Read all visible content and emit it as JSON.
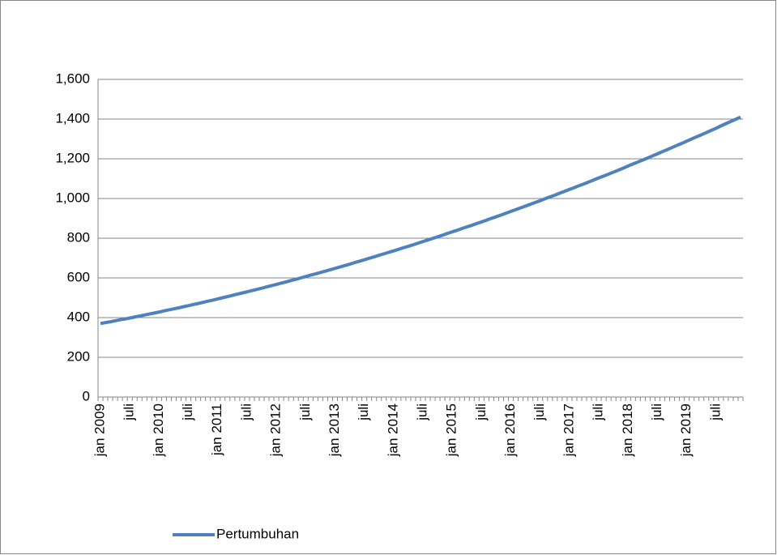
{
  "chart_data": {
    "type": "line",
    "categories": [
      "jan 2009",
      null,
      null,
      null,
      null,
      null,
      "juli",
      null,
      null,
      null,
      null,
      null,
      "jan 2010",
      null,
      null,
      null,
      null,
      null,
      "juli",
      null,
      null,
      null,
      null,
      null,
      "jan 2011",
      null,
      null,
      null,
      null,
      null,
      "juli",
      null,
      null,
      null,
      null,
      null,
      "jan 2012",
      null,
      null,
      null,
      null,
      null,
      "juli",
      null,
      null,
      null,
      null,
      null,
      "jan 2013",
      null,
      null,
      null,
      null,
      null,
      "juli",
      null,
      null,
      null,
      null,
      null,
      "jan 2014",
      null,
      null,
      null,
      null,
      null,
      "juli",
      null,
      null,
      null,
      null,
      null,
      "jan 2015",
      null,
      null,
      null,
      null,
      null,
      "juli",
      null,
      null,
      null,
      null,
      null,
      "jan 2016",
      null,
      null,
      null,
      null,
      null,
      "juli",
      null,
      null,
      null,
      null,
      null,
      "jan 2017",
      null,
      null,
      null,
      null,
      null,
      "juli",
      null,
      null,
      null,
      null,
      null,
      "jan 2018",
      null,
      null,
      null,
      null,
      null,
      "juli",
      null,
      null,
      null,
      null,
      null,
      "jan 2019",
      null,
      null,
      null,
      null,
      null,
      "juli",
      null,
      null,
      null,
      null,
      null
    ],
    "series": [
      {
        "name": "Pertumbuhan",
        "color": "#4f81bd",
        "values": [
          370,
          375,
          379,
          384,
          389,
          393,
          398,
          403,
          408,
          413,
          418,
          423,
          428,
          434,
          439,
          444,
          449,
          455,
          460,
          466,
          471,
          477,
          483,
          488,
          494,
          500,
          506,
          512,
          518,
          524,
          530,
          536,
          542,
          548,
          555,
          561,
          567,
          574,
          580,
          587,
          593,
          600,
          607,
          614,
          620,
          627,
          634,
          641,
          648,
          655,
          662,
          669,
          677,
          684,
          691,
          699,
          706,
          714,
          721,
          729,
          736,
          744,
          752,
          759,
          767,
          775,
          783,
          791,
          799,
          807,
          815,
          824,
          832,
          840,
          849,
          857,
          865,
          874,
          882,
          891,
          900,
          908,
          917,
          926,
          935,
          944,
          953,
          962,
          971,
          980,
          989,
          999,
          1008,
          1017,
          1027,
          1036,
          1046,
          1055,
          1065,
          1074,
          1084,
          1094,
          1104,
          1113,
          1123,
          1133,
          1143,
          1153,
          1164,
          1174,
          1184,
          1194,
          1204,
          1215,
          1225,
          1236,
          1246,
          1257,
          1268,
          1278,
          1289,
          1300,
          1311,
          1321,
          1332,
          1343,
          1354,
          1366,
          1377,
          1388,
          1399,
          1410
        ]
      }
    ],
    "ylim": [
      0,
      1600
    ],
    "yticks": [
      0,
      200,
      400,
      600,
      800,
      {
        "value": 1000,
        "label": "1,000"
      },
      {
        "value": 1200,
        "label": "1,200"
      },
      {
        "value": 1400,
        "label": "1,400"
      },
      {
        "value": 1600,
        "label": "1,600"
      }
    ],
    "grid": true,
    "legend": "bottom"
  }
}
